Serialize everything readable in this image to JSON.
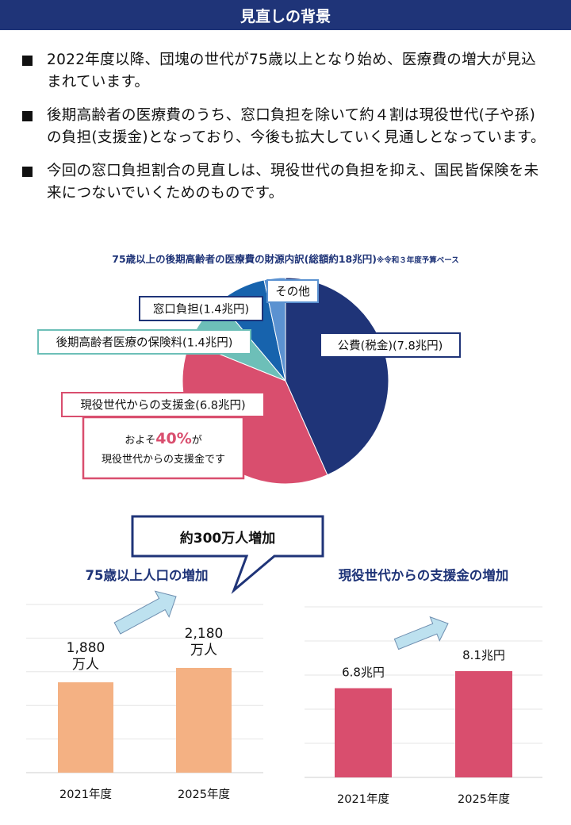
{
  "header": {
    "title": "見直しの背景"
  },
  "bullets": [
    "2022年度以降、団塊の世代が75歳以上となり始め、医療費の増大が見込まれています。",
    "後期高齢者の医療費のうち、窓口負担を除いて約４割は現役世代(子や孫)の負担(支援金)となっており、今後も拡大していく見通しとなっています。",
    "今回の窓口負担割合の見直しは、現役世代の負担を抑え、国民皆保険を未来につないでいくためのものです。"
  ],
  "colors": {
    "navy": "#1f3478",
    "pink": "#d94e6e",
    "teal": "#6dbfb8",
    "blue": "#1763ad",
    "light_blue": "#5b92d1",
    "orange": "#f4b183",
    "arrow": "#bde1ef"
  },
  "chart_data": [
    {
      "type": "pie",
      "title": "75歳以上の後期高齢者の医療費の財源内訳(総額約18兆円)",
      "note": "※令和３年度予算ベース",
      "slices": [
        {
          "label": "公費(税金)(7.8兆円)",
          "value": 7.8,
          "color": "#1f3478"
        },
        {
          "label": "現役世代からの支援金(6.8兆円)",
          "value": 6.8,
          "color": "#d94e6e"
        },
        {
          "label": "後期高齢者医療の保険料(1.4兆円)",
          "value": 1.4,
          "color": "#6dbfb8"
        },
        {
          "label": "窓口負担(1.4兆円)",
          "value": 1.4,
          "color": "#1763ad"
        },
        {
          "label": "その他",
          "value": 0.6,
          "color": "#5b92d1"
        }
      ],
      "annotation": {
        "prefix": "およそ",
        "highlight": "40%",
        "suffix": "が",
        "line2": "現役世代からの支援金です"
      }
    },
    {
      "type": "bar",
      "title": "75歳以上人口の増加",
      "categories": [
        "2021年度",
        "2025年度"
      ],
      "values": [
        1880,
        2180
      ],
      "labels": [
        [
          "1,880",
          "万人"
        ],
        [
          "2,180",
          "万人"
        ]
      ],
      "ylim": [
        0,
        3500
      ],
      "color": "#f4b183",
      "callout": "約300万人増加"
    },
    {
      "type": "bar",
      "title": "現役世代からの支援金の増加",
      "categories": [
        "2021年度",
        "2025年度"
      ],
      "values": [
        6.8,
        8.1
      ],
      "labels": [
        "6.8兆円",
        "8.1兆円"
      ],
      "ylim": [
        0,
        13
      ],
      "color": "#d94e6e"
    }
  ]
}
